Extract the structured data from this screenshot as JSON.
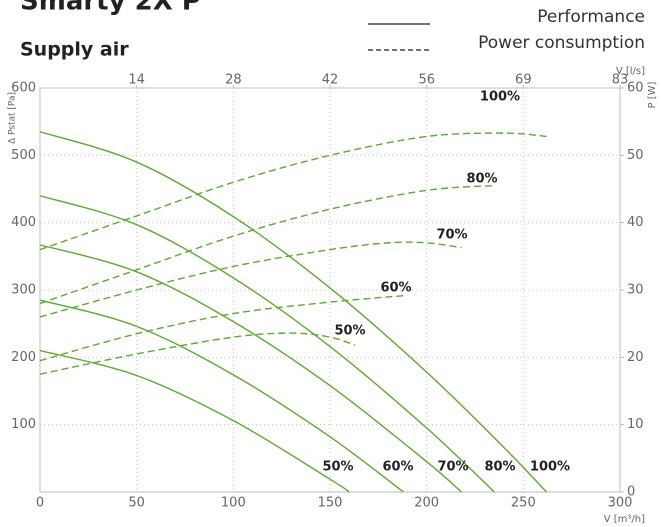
{
  "chart_data": {
    "type": "line",
    "title": "Smarty 2X P",
    "subtitle": "Supply air",
    "legend": [
      {
        "label": "Performance",
        "style": "solid"
      },
      {
        "label": "Power consumption",
        "style": "dashed"
      }
    ],
    "xlabel": "V [m³/h]",
    "x2label": "V [l/s]",
    "ylabel": "Δ Pstat [Pa]",
    "y2label": "P [W]",
    "color": "#5aab32",
    "grid": true,
    "xlim": [
      0,
      300
    ],
    "xticks": [
      0,
      50,
      100,
      150,
      200,
      250,
      300
    ],
    "x2lim": [
      0,
      83.33
    ],
    "x2ticks": [
      {
        "value": 13.89,
        "label": "14"
      },
      {
        "value": 27.78,
        "label": "28"
      },
      {
        "value": 41.67,
        "label": "42"
      },
      {
        "value": 55.56,
        "label": "56"
      },
      {
        "value": 69.44,
        "label": "69"
      },
      {
        "value": 83.33,
        "label": "83"
      }
    ],
    "ylim": [
      0,
      600
    ],
    "yticks": [
      100,
      200,
      300,
      400,
      500,
      600
    ],
    "y2lim": [
      0,
      60
    ],
    "y2ticks": [
      0,
      10,
      20,
      30,
      40,
      50,
      60
    ],
    "series": [
      {
        "name": "100%",
        "style": "solid",
        "x": [
          0,
          50,
          100,
          150,
          200,
          240,
          262
        ],
        "values": [
          535,
          490,
          409,
          303,
          178,
          66,
          0
        ]
      },
      {
        "name": "80%",
        "style": "solid",
        "x": [
          0,
          50,
          100,
          150,
          200,
          235
        ],
        "values": [
          440,
          397,
          318,
          216,
          95,
          0
        ]
      },
      {
        "name": "70%",
        "style": "solid",
        "x": [
          0,
          50,
          100,
          150,
          200,
          218
        ],
        "values": [
          367,
          327,
          253,
          158,
          45,
          0
        ]
      },
      {
        "name": "60%",
        "style": "solid",
        "x": [
          0,
          50,
          100,
          150,
          188
        ],
        "values": [
          285,
          246,
          174,
          82,
          0
        ]
      },
      {
        "name": "50%",
        "style": "solid",
        "x": [
          0,
          50,
          100,
          150,
          160
        ],
        "values": [
          210,
          173,
          106,
          19,
          0
        ]
      },
      {
        "name": "100%",
        "style": "dashed",
        "axis": "y2",
        "x": [
          0,
          50,
          100,
          150,
          200,
          240,
          262
        ],
        "values": [
          36,
          41,
          46,
          50,
          52.8,
          53.3,
          52.8
        ]
      },
      {
        "name": "80%",
        "style": "dashed",
        "axis": "y2",
        "x": [
          0,
          50,
          100,
          150,
          200,
          235
        ],
        "values": [
          28,
          33,
          38,
          42,
          44.8,
          45.5
        ]
      },
      {
        "name": "70%",
        "style": "dashed",
        "axis": "y2",
        "x": [
          0,
          50,
          100,
          150,
          180,
          200,
          218
        ],
        "values": [
          26,
          30,
          33.5,
          36,
          37,
          37,
          36.3
        ]
      },
      {
        "name": "60%",
        "style": "dashed",
        "axis": "y2",
        "x": [
          0,
          50,
          100,
          150,
          190
        ],
        "values": [
          19.5,
          23.5,
          26.5,
          28.2,
          29.2
        ]
      },
      {
        "name": "50%",
        "style": "dashed",
        "axis": "y2",
        "x": [
          0,
          50,
          100,
          130,
          150,
          163
        ],
        "values": [
          17.5,
          20.5,
          23,
          23.6,
          23,
          21.8
        ]
      }
    ]
  }
}
